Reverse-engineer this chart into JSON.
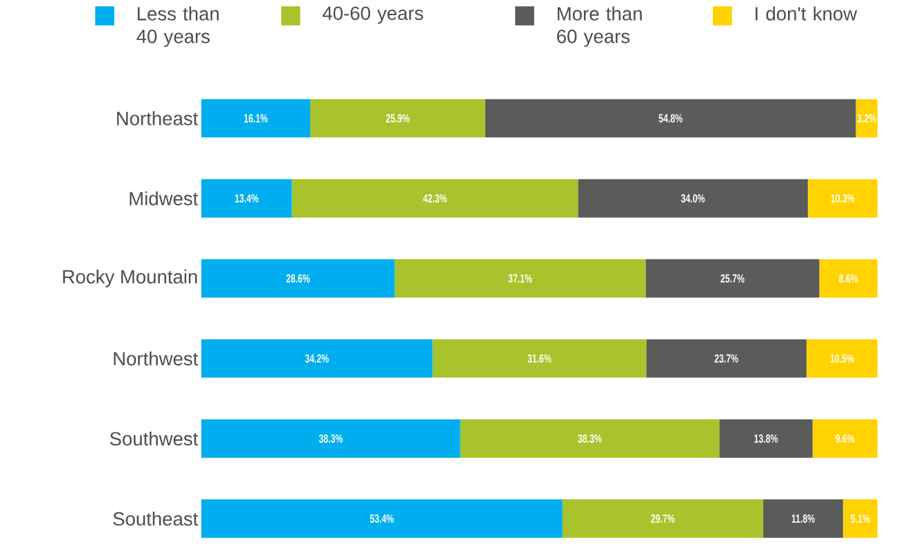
{
  "chart_data": {
    "type": "bar",
    "orientation": "horizontal",
    "stacked": true,
    "legend": "top",
    "categories": [
      "Northeast",
      "Midwest",
      "Rocky Mountain",
      "Northwest",
      "Southwest",
      "Southeast"
    ],
    "series": [
      {
        "name": "Less than 40 years",
        "color": "#00aeef",
        "values": [
          16.1,
          13.4,
          28.6,
          34.2,
          38.3,
          53.4
        ],
        "value_labels": [
          "16.1%",
          "13.4%",
          "28.6%",
          "34.2%",
          "38.3%",
          "53.4%"
        ]
      },
      {
        "name": "40-60 years",
        "color": "#a8c32b",
        "values": [
          25.9,
          42.3,
          37.1,
          31.6,
          38.3,
          29.7
        ],
        "value_labels": [
          "25.9%",
          "42.3%",
          "37.1%",
          "31.6%",
          "38.3%",
          "29.7%"
        ]
      },
      {
        "name": "More than 60 years",
        "color": "#5a5c5a",
        "values": [
          54.8,
          34.0,
          25.7,
          23.7,
          13.8,
          11.8
        ],
        "value_labels": [
          "54.8%",
          "34.0%",
          "25.7%",
          "23.7%",
          "13.8%",
          "11.8%"
        ]
      },
      {
        "name": "I don't know",
        "color": "#ffd200",
        "values": [
          3.2,
          10.3,
          8.6,
          10.5,
          9.6,
          5.1
        ],
        "value_labels": [
          "3.2%",
          "10.3%",
          "8.6%",
          "10.5%",
          "9.6%",
          "5.1%"
        ]
      }
    ]
  }
}
